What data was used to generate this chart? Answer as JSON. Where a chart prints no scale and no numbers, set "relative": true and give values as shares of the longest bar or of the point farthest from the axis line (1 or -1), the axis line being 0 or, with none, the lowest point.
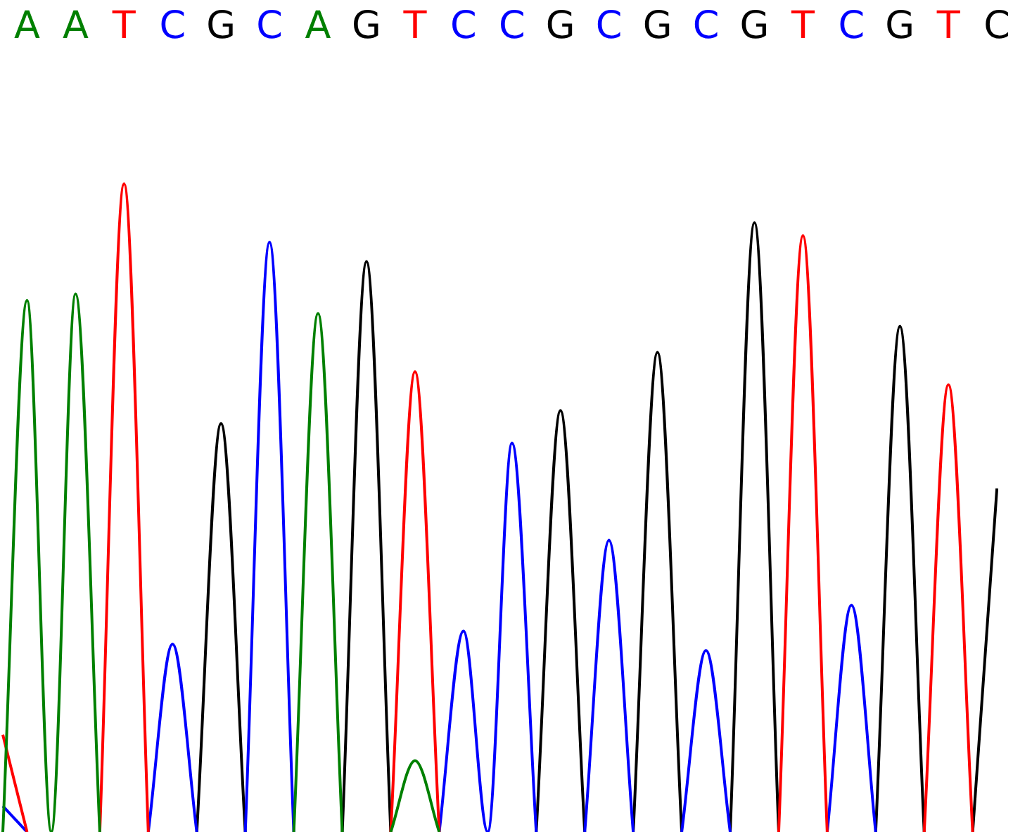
{
  "chart_data": {
    "type": "line",
    "relative": true,
    "legend": false,
    "grid": false,
    "marker": "none",
    "line_style": "solid",
    "categories": [
      null,
      "A",
      null,
      "A",
      null,
      "T",
      null,
      "C",
      null,
      "G",
      null,
      "C",
      null,
      "A",
      null,
      "G",
      null,
      "T",
      null,
      "C",
      null,
      "C",
      null,
      "G",
      null,
      "C",
      null,
      "G",
      null,
      "C",
      null,
      "G",
      null,
      "T",
      null,
      "C",
      null,
      "G",
      null,
      "T",
      null,
      "C"
    ],
    "series": [
      {
        "color": "#008000",
        "values": [
          0,
          0.82,
          0,
          0.83,
          0,
          null,
          null,
          null,
          null,
          null,
          null,
          null,
          0,
          0.8,
          0,
          null,
          0,
          0.11,
          0,
          null,
          null,
          null,
          null,
          null,
          null,
          null,
          null,
          null,
          null,
          null,
          null,
          null,
          null,
          null,
          null,
          null,
          null,
          null,
          null,
          null,
          null,
          null
        ]
      },
      {
        "color": "#ff0000",
        "values": [
          0.15,
          0,
          null,
          null,
          0,
          1,
          0,
          null,
          null,
          null,
          null,
          null,
          null,
          null,
          null,
          null,
          0,
          0.71,
          0,
          null,
          null,
          null,
          null,
          null,
          null,
          null,
          null,
          null,
          null,
          null,
          null,
          null,
          0,
          0.92,
          0,
          null,
          null,
          null,
          0,
          0.69,
          0,
          null
        ]
      },
      {
        "color": "#0000ff",
        "values": [
          0.04,
          0,
          null,
          null,
          null,
          null,
          0,
          0.29,
          0,
          null,
          0,
          0.91,
          0,
          null,
          null,
          null,
          null,
          null,
          0,
          0.31,
          0,
          0.6,
          0,
          null,
          0,
          0.45,
          0,
          null,
          0,
          0.28,
          0,
          null,
          null,
          null,
          0,
          0.35,
          0,
          null,
          null,
          null,
          null,
          null
        ]
      },
      {
        "color": "#000000",
        "values": [
          null,
          null,
          null,
          null,
          null,
          null,
          null,
          null,
          0,
          0.63,
          0,
          null,
          null,
          null,
          0,
          0.88,
          0,
          null,
          null,
          null,
          null,
          null,
          0,
          0.65,
          0,
          null,
          0,
          0.74,
          0,
          null,
          0,
          0.94,
          0,
          null,
          null,
          null,
          0,
          0.78,
          0,
          null,
          0,
          0.53
        ]
      }
    ]
  }
}
